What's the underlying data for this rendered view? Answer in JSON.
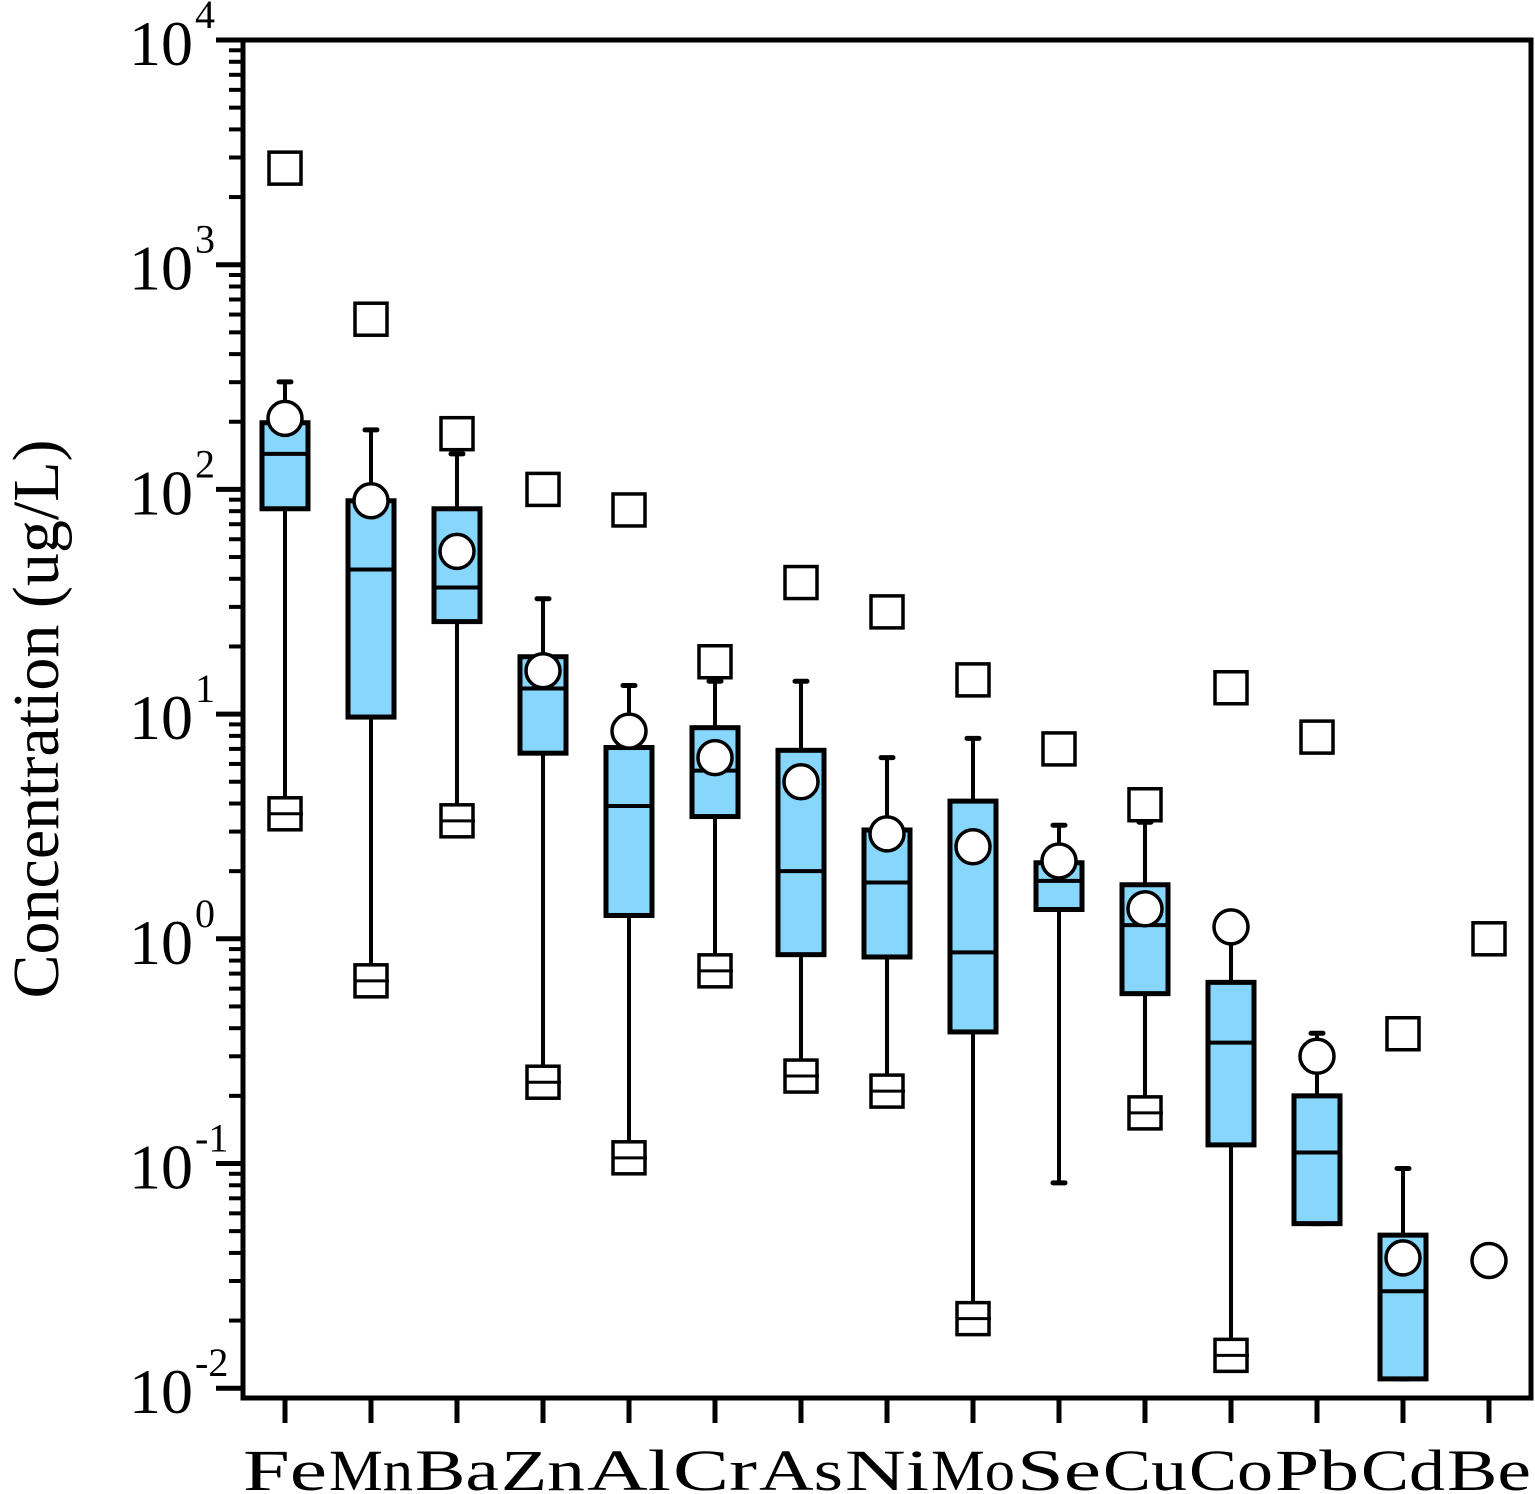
{
  "chart_data": {
    "type": "boxplot",
    "title": "",
    "xlabel": "",
    "ylabel": "Concentration (ug/L)",
    "yscale": "log",
    "ylim": [
      0.01,
      10000
    ],
    "y_ticks": [
      {
        "value": 10000,
        "base": "10",
        "exp": "4"
      },
      {
        "value": 1000,
        "base": "10",
        "exp": "3"
      },
      {
        "value": 100,
        "base": "10",
        "exp": "2"
      },
      {
        "value": 10,
        "base": "10",
        "exp": "1"
      },
      {
        "value": 1,
        "base": "10",
        "exp": "0"
      },
      {
        "value": 0.1,
        "base": "10",
        "exp": "-1"
      },
      {
        "value": 0.01,
        "base": "10",
        "exp": "-2"
      }
    ],
    "grid": false,
    "legend": null,
    "box_fill": "#87d6fb",
    "line_color": "#000000",
    "marker_notes": "square = max/min value, circle = mean, box = 25th-75th percentile with median line, whiskers with caps",
    "categories": [
      "Fe",
      "Mn",
      "Ba",
      "Zn",
      "Al",
      "Cr",
      "As",
      "Ni",
      "Mo",
      "Se",
      "Cu",
      "Co",
      "Pb",
      "Cd",
      "Be"
    ],
    "series": [
      {
        "name": "Fe",
        "max": 2690,
        "whisker_high": 301,
        "q3": 198,
        "median": 144,
        "q1": 82,
        "whisker_low": 3.9,
        "min": 3.6,
        "mean": 207
      },
      {
        "name": "Mn",
        "max": 572,
        "whisker_high": 184,
        "q3": 89,
        "median": 44,
        "q1": 9.7,
        "whisker_low": 0.72,
        "min": 0.65,
        "mean": 89
      },
      {
        "name": "Ba",
        "max": 177,
        "whisker_high": 144,
        "q3": 82,
        "median": 36.6,
        "q1": 25.8,
        "whisker_low": 3.6,
        "min": 3.35,
        "mean": 53
      },
      {
        "name": "Zn",
        "max": 100,
        "whisker_high": 32.6,
        "q3": 18,
        "median": 13,
        "q1": 6.7,
        "whisker_low": 0.25,
        "min": 0.23,
        "mean": 15.6
      },
      {
        "name": "Al",
        "max": 81,
        "whisker_high": 13.4,
        "q3": 7.1,
        "median": 3.9,
        "q1": 1.27,
        "whisker_low": 0.115,
        "min": 0.106,
        "mean": 8.4
      },
      {
        "name": "Cr",
        "max": 17.1,
        "whisker_high": 14,
        "q3": 8.7,
        "median": 5.6,
        "q1": 3.5,
        "whisker_low": 0.8,
        "min": 0.72,
        "mean": 6.4
      },
      {
        "name": "As",
        "max": 38.5,
        "whisker_high": 14,
        "q3": 6.9,
        "median": 2.0,
        "q1": 0.85,
        "whisker_low": 0.27,
        "min": 0.245,
        "mean": 5.0
      },
      {
        "name": "Ni",
        "max": 28.5,
        "whisker_high": 6.4,
        "q3": 3.05,
        "median": 1.78,
        "q1": 0.83,
        "whisker_low": 0.23,
        "min": 0.21,
        "mean": 2.93
      },
      {
        "name": "Mo",
        "max": 14.2,
        "whisker_high": 7.8,
        "q3": 4.1,
        "median": 0.87,
        "q1": 0.385,
        "whisker_low": 0.022,
        "min": 0.0204,
        "mean": 2.57
      },
      {
        "name": "Se",
        "max": 7.0,
        "whisker_high": 3.2,
        "q3": 2.18,
        "median": 1.81,
        "q1": 1.35,
        "whisker_low": 0.082,
        "min": null,
        "mean": 2.22
      },
      {
        "name": "Cu",
        "max": 3.95,
        "whisker_high": 3.3,
        "q3": 1.74,
        "median": 1.15,
        "q1": 0.57,
        "whisker_low": 0.18,
        "min": 0.168,
        "mean": 1.36
      },
      {
        "name": "Co",
        "max": 13.1,
        "whisker_high": 0.98,
        "q3": 0.64,
        "median": 0.345,
        "q1": 0.121,
        "whisker_low": 0.0155,
        "min": 0.014,
        "mean": 1.13
      },
      {
        "name": "Pb",
        "max": 7.9,
        "whisker_high": 0.38,
        "q3": 0.2,
        "median": 0.112,
        "q1": 0.054,
        "whisker_low": 0.054,
        "min": null,
        "mean": 0.3
      },
      {
        "name": "Cd",
        "max": 0.378,
        "whisker_high": 0.095,
        "q3": 0.048,
        "median": 0.027,
        "q1": 0.011,
        "whisker_low": 0.011,
        "min": null,
        "mean": 0.038
      },
      {
        "name": "Be",
        "max": 1.0,
        "whisker_high": null,
        "q3": null,
        "median": null,
        "q1": null,
        "whisker_low": null,
        "min": null,
        "mean": 0.037
      }
    ]
  }
}
